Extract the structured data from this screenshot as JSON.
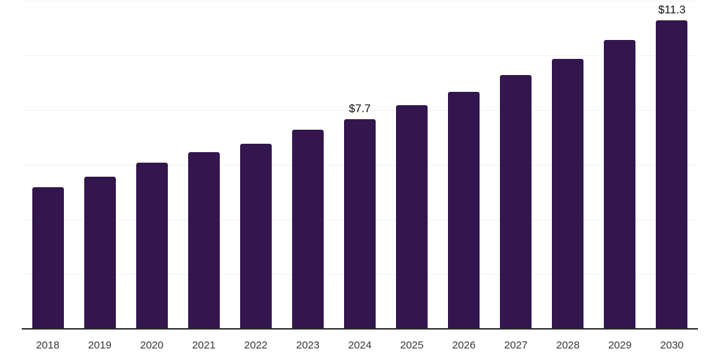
{
  "chart_data": {
    "type": "bar",
    "title": "",
    "xlabel": "",
    "ylabel": "",
    "categories": [
      "2018",
      "2019",
      "2020",
      "2021",
      "2022",
      "2023",
      "2024",
      "2025",
      "2026",
      "2027",
      "2028",
      "2029",
      "2030"
    ],
    "values": [
      5.2,
      5.6,
      6.1,
      6.5,
      6.8,
      7.3,
      7.7,
      8.2,
      8.7,
      9.3,
      9.9,
      10.6,
      11.3
    ],
    "data_labels": [
      "",
      "",
      "",
      "",
      "",
      "",
      "$7.7",
      "",
      "",
      "",
      "",
      "",
      "$11.3"
    ],
    "value_prefix": "$",
    "ylim": [
      0,
      12
    ],
    "grid_step": 2,
    "grid": "horizontal",
    "legend_position": "none",
    "colors": {
      "bar": "#32164d",
      "grid": "#f2f2f2",
      "axis": "#2b2b2b",
      "tick_label": "#363636",
      "data_label": "#111111",
      "background": "#ffffff"
    }
  }
}
